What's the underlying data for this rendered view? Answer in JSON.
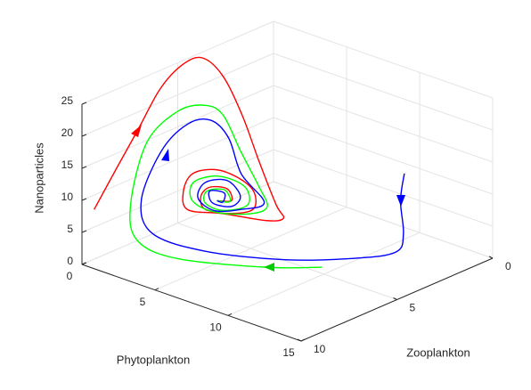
{
  "chart_data": {
    "type": "line3d",
    "xlabel": "Phytoplankton",
    "ylabel": "Zooplankton",
    "zlabel": "Nanoparticles",
    "xlim": [
      0,
      15
    ],
    "ylim": [
      0,
      10
    ],
    "zlim": [
      0,
      25
    ],
    "xticks": [
      0,
      5,
      10,
      15
    ],
    "yticks": [
      0,
      5,
      10
    ],
    "zticks": [
      0,
      5,
      10,
      15,
      20,
      25
    ],
    "grid": true,
    "series": [
      {
        "color": "#ff0000",
        "x": [
          0.7,
          1.4,
          1.5,
          0.5,
          0.3,
          0.5,
          2.3,
          4.3,
          5.4,
          6.6,
          7.5,
          9.1,
          6.1,
          3.7,
          3.4,
          4.0,
          5.5,
          7.0,
          8.2,
          8.2,
          6.7,
          4.9,
          4.6,
          5.2,
          6.4,
          6.7,
          5.7
        ],
        "y": [
          9.9,
          9.3,
          8.2,
          6.3,
          5.0,
          4.1,
          4.4,
          4.9,
          4.9,
          4.9,
          5.2,
          7.3,
          7.3,
          7.3,
          7.3,
          7.3,
          7.3,
          7.3,
          7.3,
          7.3,
          7.3,
          7.3,
          7.3,
          7.3,
          7.3,
          7.3,
          7.3
        ],
        "z": [
          9,
          15,
          20,
          23,
          24.9,
          25,
          24,
          20,
          14,
          8,
          7,
          10.6,
          9.3,
          8.0,
          10.6,
          13.8,
          15.7,
          15.8,
          14.5,
          11.7,
          9.8,
          9.0,
          10.8,
          12.7,
          13.4,
          11.8,
          11
        ]
      },
      {
        "color": "#00ff00",
        "x": [
          9.6,
          7.5,
          3.7,
          1.7,
          1.1,
          1.3,
          2.0,
          2.8,
          3.5,
          5.1,
          6.6,
          7.3,
          7.9,
          5.5,
          4.0,
          4.1,
          5.8,
          7.6,
          7.8,
          6.1,
          4.9,
          5.0,
          6.2,
          6.6,
          5.7
        ],
        "y": [
          4.8,
          6.1,
          7.8,
          8.4,
          8.3,
          7.6,
          6.5,
          5.7,
          5.3,
          5.6,
          5.8,
          5.9,
          7.3,
          7.3,
          7.3,
          7.3,
          7.3,
          7.3,
          7.3,
          7.3,
          7.3,
          7.3,
          7.3,
          7.3,
          7.3
        ],
        "z": [
          0.5,
          0.5,
          1,
          3,
          8,
          17,
          21,
          21.5,
          20,
          16,
          12,
          9.5,
          10.7,
          9.1,
          9.7,
          12.6,
          14.9,
          14.7,
          12.0,
          9.8,
          10.0,
          11.9,
          13.1,
          11.6,
          11
        ]
      },
      {
        "color": "#0000ff",
        "x": [
          12.1,
          12.1,
          12.3,
          12.2,
          10.7,
          8.1,
          4.6,
          2.2,
          1.7,
          1.5,
          2.1,
          2.9,
          4.0,
          5.4,
          7.1,
          7.3,
          5.5,
          4.4,
          4.9,
          6.4,
          7.3,
          6.7,
          5.4,
          5.2,
          6.2,
          6.1,
          5.7
        ],
        "y": [
          2.4,
          2.6,
          2.6,
          2.9,
          3.8,
          5.6,
          7.1,
          8.0,
          8.2,
          7.0,
          6.1,
          5.5,
          5.4,
          5.8,
          5.9,
          7.3,
          7.3,
          7.3,
          7.3,
          7.3,
          7.3,
          7.3,
          7.3,
          7.3,
          7.3,
          7.3,
          7.3
        ],
        "z": [
          14,
          10,
          5,
          2.5,
          1.5,
          1.5,
          2,
          4,
          9,
          15,
          18.5,
          19,
          17,
          13,
          10,
          10.9,
          9.3,
          10.4,
          13.2,
          14.7,
          13.0,
          10.9,
          10.4,
          12.1,
          12.6,
          11.1,
          11
        ]
      }
    ]
  }
}
